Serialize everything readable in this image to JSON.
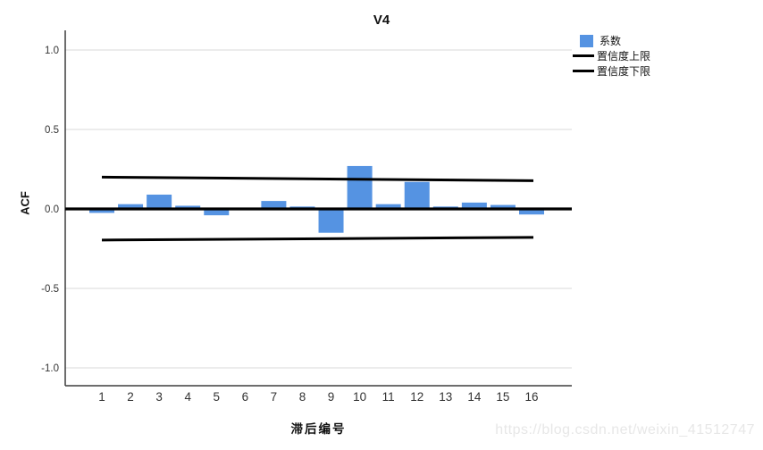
{
  "page": {
    "watermark": "https://blog.csdn.net/weixin_41512747"
  },
  "chart_data": {
    "type": "bar",
    "title": "V4",
    "xlabel": "滞后编号",
    "ylabel": "ACF",
    "categories": [
      1,
      2,
      3,
      4,
      5,
      6,
      7,
      8,
      9,
      10,
      11,
      12,
      13,
      14,
      15,
      16
    ],
    "values": [
      -0.025,
      0.03,
      0.09,
      0.02,
      -0.04,
      0.005,
      0.05,
      0.015,
      -0.15,
      0.27,
      0.03,
      0.17,
      0.015,
      0.04,
      0.025,
      -0.035
    ],
    "ylim": [
      -1.12,
      1.12
    ],
    "ytick_values": [
      1.0,
      0.5,
      0.0,
      -0.5,
      -1.0
    ],
    "ytick_labels": [
      "1.0",
      "0.5",
      "0.0",
      "-0.5",
      "-1.0"
    ],
    "grid": "light horizontal gridlines at ±0.5 and ±1.0, bold black zero line",
    "legend_position": "top-right",
    "confidence_upper": {
      "start": 0.2,
      "end": 0.178
    },
    "confidence_lower": {
      "start": -0.196,
      "end": -0.179
    },
    "colors": {
      "bar": "#5593E2",
      "confidence_line": "#000000",
      "gridline": "#d9d9d9",
      "axis_line": "#3d3d3d",
      "tick_text": "#333333"
    },
    "legend": [
      {
        "label": "系数",
        "marker": "square",
        "color": "#5593E2"
      },
      {
        "label": "置信度上限",
        "marker": "line",
        "color": "#000000"
      },
      {
        "label": "置信度下限",
        "marker": "line",
        "color": "#000000"
      }
    ]
  }
}
